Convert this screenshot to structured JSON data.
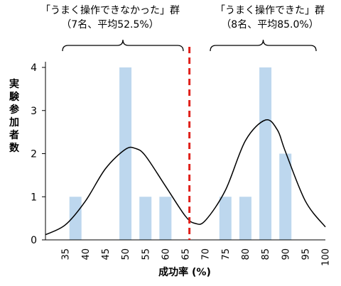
{
  "groups": {
    "left": {
      "title": "「うまく操作できなかった」群",
      "subtitle": "（7名、平均52.5%）"
    },
    "right": {
      "title": "「うまく操作できた」群",
      "subtitle": "（8名、平均85.0%）"
    }
  },
  "chart_data": {
    "type": "bar",
    "xlabel": "成功率 (%)",
    "ylabel": "実験参加者数",
    "xlim": [
      30,
      100
    ],
    "ylim": [
      0,
      4
    ],
    "x_ticks": [
      35,
      40,
      45,
      50,
      55,
      60,
      65,
      70,
      75,
      80,
      85,
      90,
      95,
      100
    ],
    "y_ticks": [
      0,
      1,
      2,
      3,
      4
    ],
    "grid": false,
    "bar_color": "#bdd7ee",
    "divider": {
      "x": 66,
      "color": "#e0201a",
      "style": "dashed"
    },
    "series": [
      {
        "categories": [
          37.5,
          40,
          45,
          50,
          55,
          60,
          62.5,
          70,
          75,
          80,
          85,
          90,
          95
        ],
        "values": [
          1,
          0,
          0,
          4,
          1,
          1,
          0,
          0,
          1,
          1,
          4,
          2,
          0
        ]
      }
    ],
    "curve": {
      "color": "#000000",
      "points": [
        [
          30,
          0.12
        ],
        [
          35,
          0.35
        ],
        [
          40,
          0.9
        ],
        [
          45,
          1.65
        ],
        [
          50,
          2.1
        ],
        [
          52.5,
          2.12
        ],
        [
          55,
          1.95
        ],
        [
          60,
          1.25
        ],
        [
          65,
          0.55
        ],
        [
          67.5,
          0.38
        ],
        [
          70,
          0.45
        ],
        [
          75,
          1.15
        ],
        [
          80,
          2.3
        ],
        [
          85,
          2.78
        ],
        [
          88,
          2.55
        ],
        [
          90,
          2.05
        ],
        [
          95,
          0.9
        ],
        [
          100,
          0.3
        ]
      ]
    }
  }
}
